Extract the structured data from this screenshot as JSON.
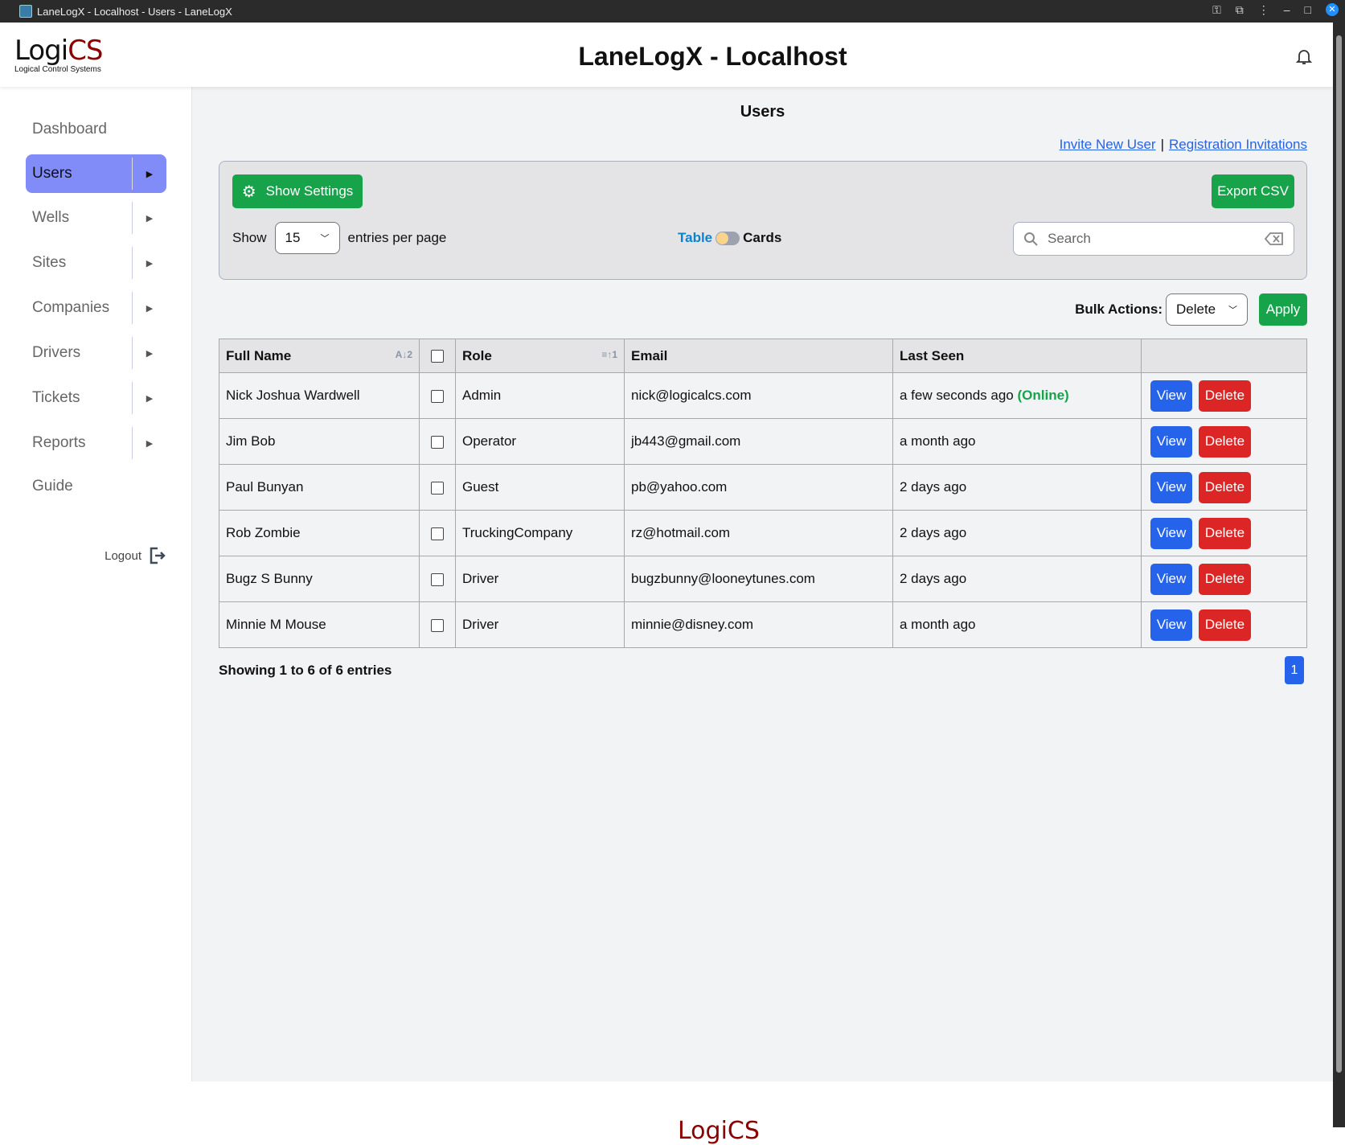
{
  "window": {
    "title": "LaneLogX - Localhost - Users - LaneLogX"
  },
  "header": {
    "logo_main": "Logi",
    "logo_accent": "CS",
    "logo_tagline": "Logical Control Systems",
    "title": "LaneLogX - Localhost"
  },
  "sidebar": {
    "items": [
      {
        "label": "Dashboard",
        "submenu": false
      },
      {
        "label": "Users",
        "submenu": true,
        "active": true
      },
      {
        "label": "Wells",
        "submenu": true
      },
      {
        "label": "Sites",
        "submenu": true
      },
      {
        "label": "Companies",
        "submenu": true
      },
      {
        "label": "Drivers",
        "submenu": true
      },
      {
        "label": "Tickets",
        "submenu": true
      },
      {
        "label": "Reports",
        "submenu": true
      },
      {
        "label": "Guide",
        "submenu": false
      }
    ],
    "logout": "Logout",
    "active_color": "#818cf8"
  },
  "main": {
    "title": "Users",
    "links": {
      "invite": "Invite New User",
      "invitations": "Registration Invitations"
    },
    "settings_button": "Show Settings",
    "export_button": "Export CSV",
    "show_label": "Show",
    "entries_value": "15",
    "entries_suffix": "entries per page",
    "view_toggle": {
      "left": "Table",
      "right": "Cards",
      "selected": "Table"
    },
    "search_placeholder": "Search",
    "bulk": {
      "label": "Bulk Actions:",
      "value": "Delete",
      "apply": "Apply"
    },
    "table": {
      "columns": [
        "Full Name",
        "",
        "Role",
        "Email",
        "Last Seen",
        ""
      ],
      "rows": [
        {
          "name": "Nick Joshua Wardwell",
          "role": "Admin",
          "email": "nick@logicalcs.com",
          "last_seen": "a few seconds ago",
          "status": "(Online)"
        },
        {
          "name": "Jim Bob",
          "role": "Operator",
          "email": "jb443@gmail.com",
          "last_seen": "a month ago",
          "status": ""
        },
        {
          "name": "Paul Bunyan",
          "role": "Guest",
          "email": "pb@yahoo.com",
          "last_seen": "2 days ago",
          "status": ""
        },
        {
          "name": "Rob Zombie",
          "role": "TruckingCompany",
          "email": "rz@hotmail.com",
          "last_seen": "2 days ago",
          "status": ""
        },
        {
          "name": "Bugz S Bunny",
          "role": "Driver",
          "email": "bugzbunny@looneytunes.com",
          "last_seen": "2 days ago",
          "status": ""
        },
        {
          "name": "Minnie M Mouse",
          "role": "Driver",
          "email": "minnie@disney.com",
          "last_seen": "a month ago",
          "status": ""
        }
      ],
      "view_label": "View",
      "delete_label": "Delete"
    },
    "showing": "Showing 1 to 6 of 6 entries",
    "page": "1"
  },
  "footer": {
    "logo": "LogiCS"
  },
  "colors": {
    "green": "#16a34a",
    "blue": "#2563eb",
    "red": "#dc2626",
    "brand": "#8b0000"
  }
}
